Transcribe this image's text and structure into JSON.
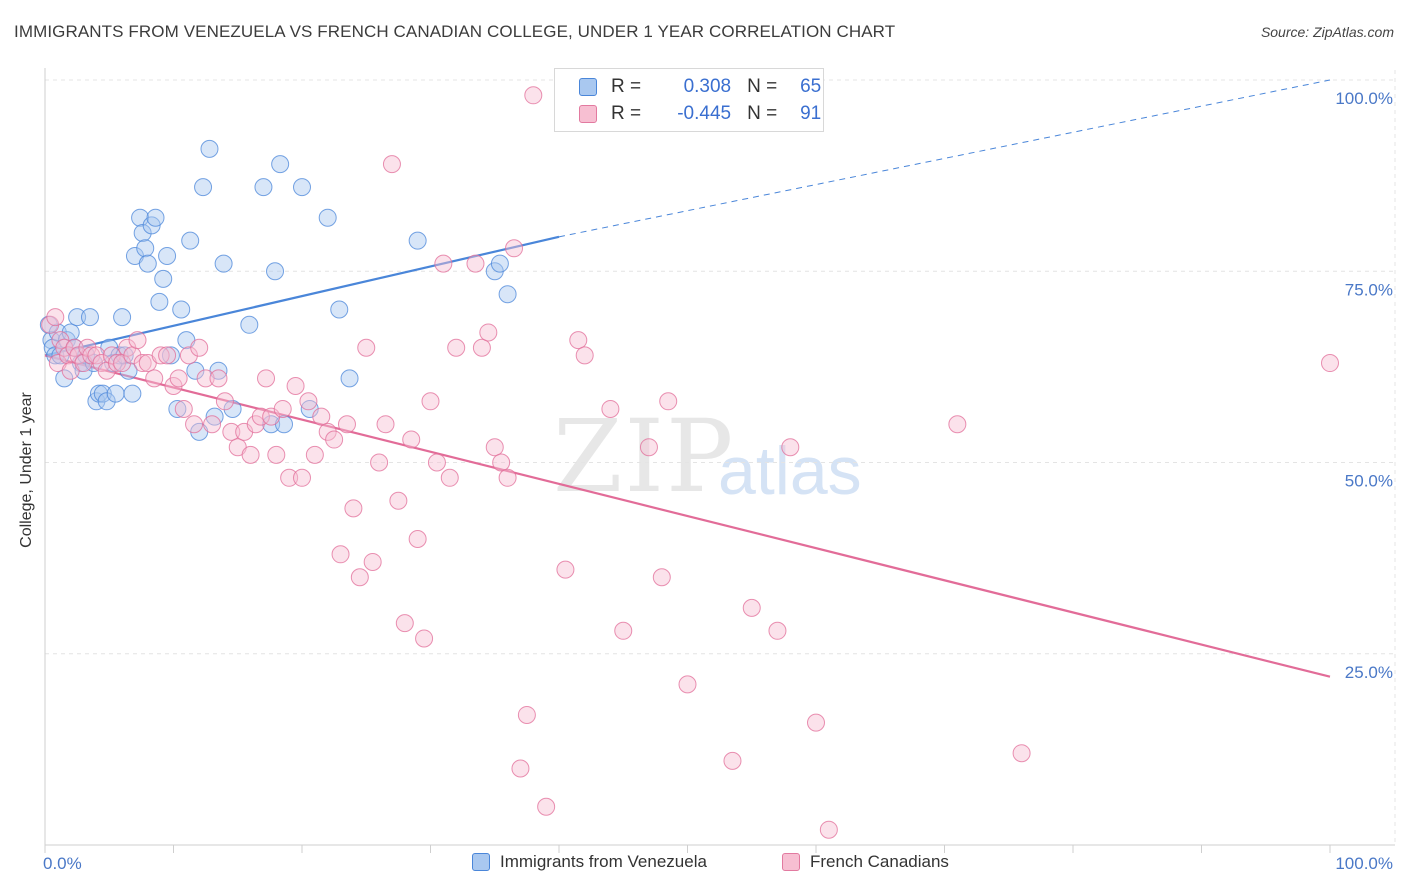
{
  "title": "IMMIGRANTS FROM VENEZUELA VS FRENCH CANADIAN COLLEGE, UNDER 1 YEAR CORRELATION CHART",
  "source": "Source: ZipAtlas.com",
  "watermark": {
    "zip": "ZIP",
    "atlas": "atlas"
  },
  "stats": {
    "r_label": "R =",
    "n_label": "N =",
    "rows": [
      {
        "name": "Immigrants from Venezuela",
        "r": "0.308",
        "n": "65",
        "color": "#a9c8f0",
        "edge": "#4a86d9"
      },
      {
        "name": "French Canadians",
        "r": "-0.445",
        "n": "91",
        "color": "#f7bfd2",
        "edge": "#e27aa0"
      }
    ]
  },
  "legend": [
    "Immigrants from Venezuela",
    "French Canadians"
  ],
  "chart_data": {
    "type": "scatter",
    "xlabel": "",
    "ylabel": "College, Under 1 year",
    "xlim": [
      0,
      100
    ],
    "ylim": [
      0,
      100
    ],
    "x_tick_labels": [
      "0.0%",
      "100.0%"
    ],
    "y_tick_labels": [
      "100.0%",
      "75.0%",
      "50.0%",
      "25.0%"
    ],
    "y_ticks": [
      100,
      75,
      50,
      25
    ],
    "series": [
      {
        "name": "Immigrants from Venezuela",
        "color": "#4a86d9",
        "fill": "#a9c8f0",
        "trend": {
          "x0": 0,
          "y0": 64,
          "x1": 40,
          "y1": 79.5,
          "dash_to_x": 100,
          "dash_to_y": 100
        },
        "points": [
          [
            0.3,
            68
          ],
          [
            0.5,
            66
          ],
          [
            0.6,
            65
          ],
          [
            0.8,
            64
          ],
          [
            1.0,
            67
          ],
          [
            1.2,
            64
          ],
          [
            1.5,
            61
          ],
          [
            1.7,
            66
          ],
          [
            2.0,
            67
          ],
          [
            2.3,
            65
          ],
          [
            2.5,
            69
          ],
          [
            2.8,
            63
          ],
          [
            3.0,
            62
          ],
          [
            3.2,
            64
          ],
          [
            3.5,
            69
          ],
          [
            3.8,
            63
          ],
          [
            4.0,
            58
          ],
          [
            4.2,
            59
          ],
          [
            4.5,
            59
          ],
          [
            4.8,
            58
          ],
          [
            5.0,
            65
          ],
          [
            5.3,
            63
          ],
          [
            5.5,
            59
          ],
          [
            5.8,
            64
          ],
          [
            6.0,
            69
          ],
          [
            6.2,
            64
          ],
          [
            6.5,
            62
          ],
          [
            6.8,
            59
          ],
          [
            7.0,
            77
          ],
          [
            7.4,
            82
          ],
          [
            7.6,
            80
          ],
          [
            7.8,
            78
          ],
          [
            8.0,
            76
          ],
          [
            8.3,
            81
          ],
          [
            8.6,
            82
          ],
          [
            8.9,
            71
          ],
          [
            9.2,
            74
          ],
          [
            9.5,
            77
          ],
          [
            9.8,
            64
          ],
          [
            10.3,
            57
          ],
          [
            10.6,
            70
          ],
          [
            11.0,
            66
          ],
          [
            11.3,
            79
          ],
          [
            11.7,
            62
          ],
          [
            12.0,
            54
          ],
          [
            12.3,
            86
          ],
          [
            12.8,
            91
          ],
          [
            13.2,
            56
          ],
          [
            13.5,
            62
          ],
          [
            13.9,
            76
          ],
          [
            14.6,
            57
          ],
          [
            15.9,
            68
          ],
          [
            17.0,
            86
          ],
          [
            17.6,
            55
          ],
          [
            17.9,
            75
          ],
          [
            18.3,
            89
          ],
          [
            18.6,
            55
          ],
          [
            20.0,
            86
          ],
          [
            20.6,
            57
          ],
          [
            22.0,
            82
          ],
          [
            22.9,
            70
          ],
          [
            23.7,
            61
          ],
          [
            29.0,
            79
          ],
          [
            35.0,
            75
          ],
          [
            35.4,
            76
          ],
          [
            36.0,
            72
          ]
        ]
      },
      {
        "name": "French Canadians",
        "color": "#e26c98",
        "fill": "#f7bfd2",
        "trend": {
          "x0": 0,
          "y0": 64,
          "x1": 100,
          "y1": 22
        },
        "points": [
          [
            0.4,
            68
          ],
          [
            0.8,
            69
          ],
          [
            1.0,
            63
          ],
          [
            1.2,
            66
          ],
          [
            1.5,
            65
          ],
          [
            1.8,
            64
          ],
          [
            2.0,
            62
          ],
          [
            2.3,
            65
          ],
          [
            2.6,
            64
          ],
          [
            3.0,
            63
          ],
          [
            3.3,
            65
          ],
          [
            3.6,
            64
          ],
          [
            4.0,
            64
          ],
          [
            4.4,
            63
          ],
          [
            4.8,
            62
          ],
          [
            5.2,
            64
          ],
          [
            5.6,
            63
          ],
          [
            6.0,
            63
          ],
          [
            6.4,
            65
          ],
          [
            6.8,
            64
          ],
          [
            7.2,
            66
          ],
          [
            7.6,
            63
          ],
          [
            8.0,
            63
          ],
          [
            8.5,
            61
          ],
          [
            9.0,
            64
          ],
          [
            9.5,
            64
          ],
          [
            10.0,
            60
          ],
          [
            10.4,
            61
          ],
          [
            10.8,
            57
          ],
          [
            11.2,
            64
          ],
          [
            11.6,
            55
          ],
          [
            12.0,
            65
          ],
          [
            12.5,
            61
          ],
          [
            13.0,
            55
          ],
          [
            13.5,
            61
          ],
          [
            14.0,
            58
          ],
          [
            14.5,
            54
          ],
          [
            15.0,
            52
          ],
          [
            15.5,
            54
          ],
          [
            16.0,
            51
          ],
          [
            16.4,
            55
          ],
          [
            16.8,
            56
          ],
          [
            17.2,
            61
          ],
          [
            17.6,
            56
          ],
          [
            18.0,
            51
          ],
          [
            18.5,
            57
          ],
          [
            19.0,
            48
          ],
          [
            19.5,
            60
          ],
          [
            20.0,
            48
          ],
          [
            20.5,
            58
          ],
          [
            21.0,
            51
          ],
          [
            21.5,
            56
          ],
          [
            22.0,
            54
          ],
          [
            22.5,
            53
          ],
          [
            23.0,
            38
          ],
          [
            23.5,
            55
          ],
          [
            24.0,
            44
          ],
          [
            24.5,
            35
          ],
          [
            25.0,
            65
          ],
          [
            25.5,
            37
          ],
          [
            26.0,
            50
          ],
          [
            26.5,
            55
          ],
          [
            27.0,
            89
          ],
          [
            27.5,
            45
          ],
          [
            28.0,
            29
          ],
          [
            28.5,
            53
          ],
          [
            29.0,
            40
          ],
          [
            29.5,
            27
          ],
          [
            30.0,
            58
          ],
          [
            30.5,
            50
          ],
          [
            31.0,
            76
          ],
          [
            31.5,
            48
          ],
          [
            32.0,
            65
          ],
          [
            33.5,
            76
          ],
          [
            34.0,
            65
          ],
          [
            34.5,
            67
          ],
          [
            35.0,
            52
          ],
          [
            35.5,
            50
          ],
          [
            36.0,
            48
          ],
          [
            36.5,
            78
          ],
          [
            37.0,
            10
          ],
          [
            37.5,
            17
          ],
          [
            38.0,
            98
          ],
          [
            39.0,
            5
          ],
          [
            40.5,
            36
          ],
          [
            41.5,
            66
          ],
          [
            42.0,
            64
          ],
          [
            44.0,
            57
          ],
          [
            45.0,
            28
          ],
          [
            47.0,
            52
          ],
          [
            48.0,
            35
          ],
          [
            48.5,
            58
          ],
          [
            50.0,
            21
          ],
          [
            53.5,
            11
          ],
          [
            55.0,
            31
          ],
          [
            57.0,
            28
          ],
          [
            58.0,
            52
          ],
          [
            60.0,
            16
          ],
          [
            61.0,
            2
          ],
          [
            71.0,
            55
          ],
          [
            76.0,
            12
          ],
          [
            100.0,
            63
          ]
        ]
      }
    ]
  }
}
